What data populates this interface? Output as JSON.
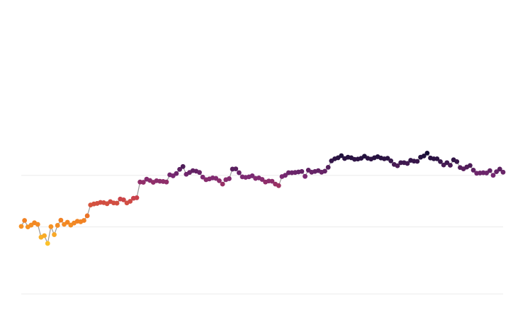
{
  "chart_data": {
    "type": "scatter",
    "title": "",
    "xlabel": "",
    "ylabel": "",
    "line": true,
    "grid": true,
    "gridlines_y": [
      100,
      80,
      54
    ],
    "ylim": [
      50,
      146
    ],
    "xlim": [
      0,
      153
    ],
    "colors": {
      "line": "#9a9a9a",
      "grid": "#ececec",
      "gradient_low": "#fcc12a",
      "gradient_mid1": "#f07a22",
      "gradient_mid2": "#c53d4f",
      "gradient_mid3": "#7c2a74",
      "gradient_high": "#140d35"
    },
    "series": [
      {
        "values": [
          80.2,
          82.5,
          80.0,
          80.7,
          81.6,
          81.0,
          76.0,
          76.6,
          73.6,
          80.1,
          77.0,
          80.6,
          82.6,
          81.0,
          81.8,
          80.7,
          81.5,
          82.2,
          82.0,
          82.5,
          84.3,
          88.5,
          88.9,
          89.1,
          89.5,
          89.4,
          89.0,
          89.8,
          89.3,
          89.2,
          90.8,
          90.5,
          89.3,
          89.9,
          91.1,
          91.3,
          97.4,
          97.3,
          98.5,
          98.0,
          97.3,
          97.9,
          97.7,
          97.6,
          97.4,
          100.2,
          99.8,
          100.7,
          102.3,
          103.4,
          100.4,
          101.1,
          101.8,
          101.6,
          101.1,
          99.3,
          98.3,
          98.6,
          99.0,
          98.8,
          97.9,
          96.6,
          98.3,
          98.7,
          102.4,
          102.5,
          101.0,
          99.4,
          99.2,
          99.4,
          99.8,
          98.8,
          99.0,
          98.4,
          97.4,
          97.8,
          97.7,
          96.6,
          96.0,
          99.5,
          100.0,
          101.0,
          101.0,
          101.1,
          101.3,
          101.5,
          99.6,
          102.0,
          101.2,
          101.5,
          101.8,
          101.2,
          101.6,
          103.1,
          105.6,
          106.4,
          106.8,
          107.6,
          106.5,
          107.0,
          106.8,
          106.2,
          106.3,
          106.6,
          107.4,
          106.6,
          106.3,
          106.8,
          107.2,
          106.7,
          106.4,
          106.6,
          105.6,
          104.2,
          103.7,
          104.9,
          104.9,
          104.6,
          105.8,
          105.5,
          105.4,
          107.0,
          107.5,
          108.6,
          106.7,
          106.4,
          106.4,
          105.3,
          104.0,
          104.9,
          103.9,
          106.0,
          105.3,
          103.0,
          102.5,
          103.2,
          103.8,
          102.0,
          100.8,
          100.9,
          101.0,
          100.9,
          101.8,
          100.0,
          101.4,
          102.4,
          101.2
        ]
      }
    ]
  }
}
